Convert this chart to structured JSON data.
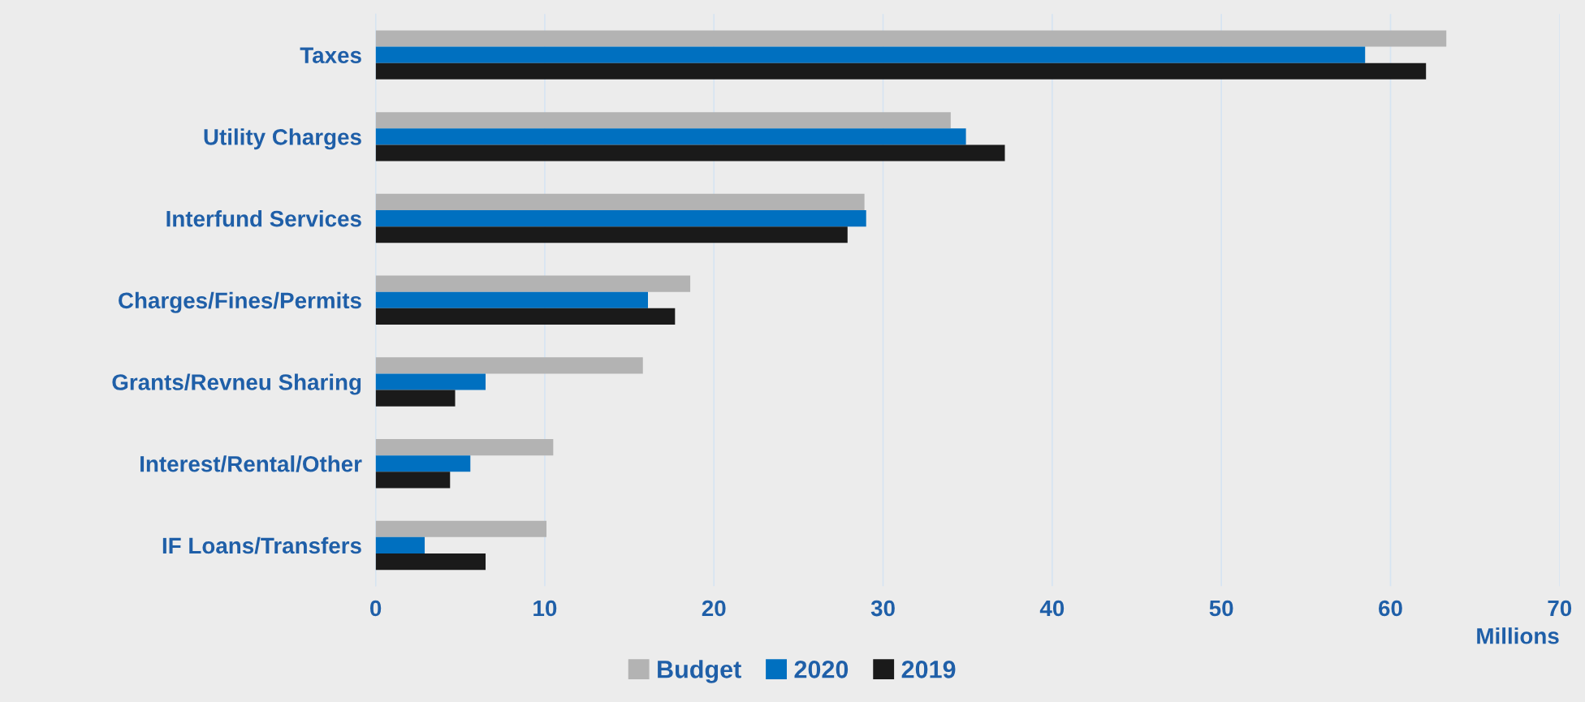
{
  "chart_data": {
    "type": "bar",
    "orientation": "horizontal",
    "xlabel": "Millions",
    "categories": [
      "Taxes",
      "Utility Charges",
      "Interfund Services",
      "Charges/Fines/Permits",
      "Grants/Revneu Sharing",
      "Interest/Rental/Other",
      "IF Loans/Transfers"
    ],
    "series": [
      {
        "name": "Budget",
        "color": "#b3b3b3",
        "values": [
          63.3,
          34.0,
          28.9,
          18.6,
          15.8,
          10.5,
          10.1
        ]
      },
      {
        "name": "2020",
        "color": "#0070c0",
        "values": [
          58.5,
          34.9,
          29.0,
          16.1,
          6.5,
          5.6,
          2.9
        ]
      },
      {
        "name": "2019",
        "color": "#1a1a1a",
        "values": [
          62.1,
          37.2,
          27.9,
          17.7,
          4.7,
          4.4,
          6.5
        ]
      }
    ],
    "xlim": [
      0,
      70
    ],
    "xticks": [
      0,
      10,
      20,
      30,
      40,
      50,
      60,
      70
    ],
    "grid": "x",
    "legend": "bottom"
  }
}
